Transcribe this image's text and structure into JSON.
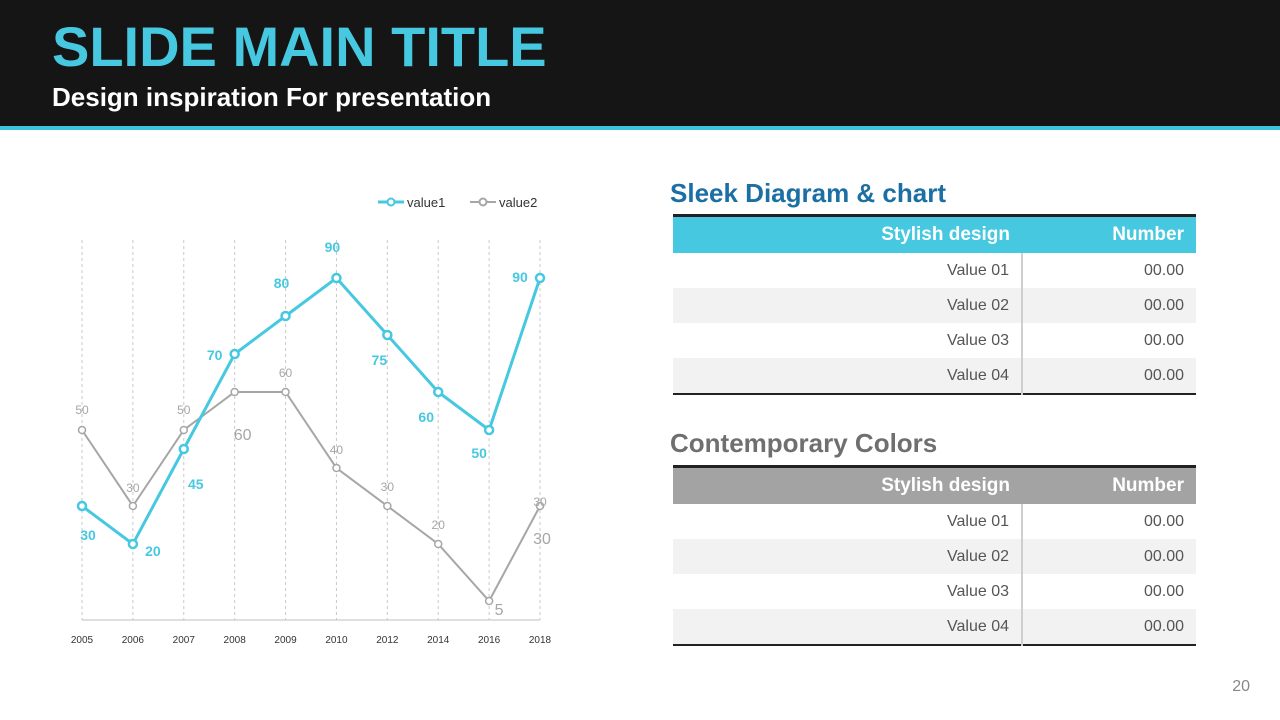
{
  "slide": {
    "title": "SLIDE MAIN TITLE",
    "subtitle": "Design inspiration For presentation",
    "page_number": "20"
  },
  "chart_data": {
    "type": "line",
    "x": [
      "2005",
      "2006",
      "2007",
      "2008",
      "2009",
      "2010",
      "2012",
      "2014",
      "2016",
      "2018"
    ],
    "series": [
      {
        "name": "value1",
        "color": "#46c8e0",
        "values": [
          30,
          20,
          45,
          70,
          80,
          90,
          75,
          60,
          50,
          90
        ]
      },
      {
        "name": "value2",
        "color": "#a6a6a6",
        "values": [
          50,
          30,
          50,
          60,
          60,
          40,
          30,
          20,
          5,
          30
        ]
      }
    ],
    "extra_labels": [
      {
        "text": "60",
        "series": "value2",
        "x": "2008",
        "y": 60
      },
      {
        "text": "5",
        "series": "value2",
        "x": "2016",
        "y": 5
      },
      {
        "text": "30",
        "series": "value2",
        "x": "2018",
        "y": 30
      }
    ],
    "ylim": [
      0,
      100
    ],
    "grid": "vertical-dashed",
    "legend": "top-right"
  },
  "tables": [
    {
      "heading": "Sleek Diagram & chart",
      "columns": [
        "Stylish  design",
        "Number"
      ],
      "rows": [
        [
          "Value  01",
          "00.00"
        ],
        [
          "Value  02",
          "00.00"
        ],
        [
          "Value  03",
          "00.00"
        ],
        [
          "Value  04",
          "00.00"
        ]
      ]
    },
    {
      "heading": "Contemporary Colors",
      "columns": [
        "Stylish  design",
        "Number"
      ],
      "rows": [
        [
          "Value  01",
          "00.00"
        ],
        [
          "Value  02",
          "00.00"
        ],
        [
          "Value  03",
          "00.00"
        ],
        [
          "Value  04",
          "00.00"
        ]
      ]
    }
  ]
}
